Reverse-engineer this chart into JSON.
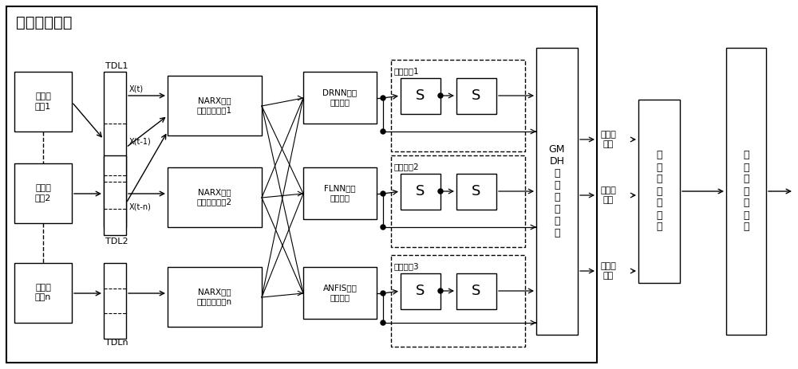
{
  "title": "温度检测单元",
  "sensor_labels": [
    "温度传\n感器1",
    "温度传\n感器2",
    "温度传\n感器n"
  ],
  "tdl_labels": [
    "TDL1",
    "TDL2",
    "TDLn"
  ],
  "narx_labels": [
    "NARX神经\n网络温度模型1",
    "NARX神经\n网络温度模型2",
    "NARX神经\n网络温度模型n"
  ],
  "nn_labels": [
    "DRNN神经\n网络模型",
    "FLNN神经\n网络模型",
    "ANFIS神经\n网络模型"
  ],
  "integral_labels": [
    "积分回路1",
    "积分回路2",
    "积分回路3"
  ],
  "s_label": "S",
  "gmdh_label": "GM\nDH\n神\n经\n网\n络\n模\n型",
  "classifier_label": "温\n度\n等\n级\n分\n类\n器",
  "output_label": "温\n度\n适\n宜\n度\n等\n级",
  "temp_labels": [
    "保育期\n温度",
    "生长期\n温度",
    "育肥期\n温度"
  ],
  "xt_labels": [
    "X(t)",
    "X(t-1)",
    "X(t-n)"
  ],
  "bg": "#ffffff",
  "lc": "#000000"
}
